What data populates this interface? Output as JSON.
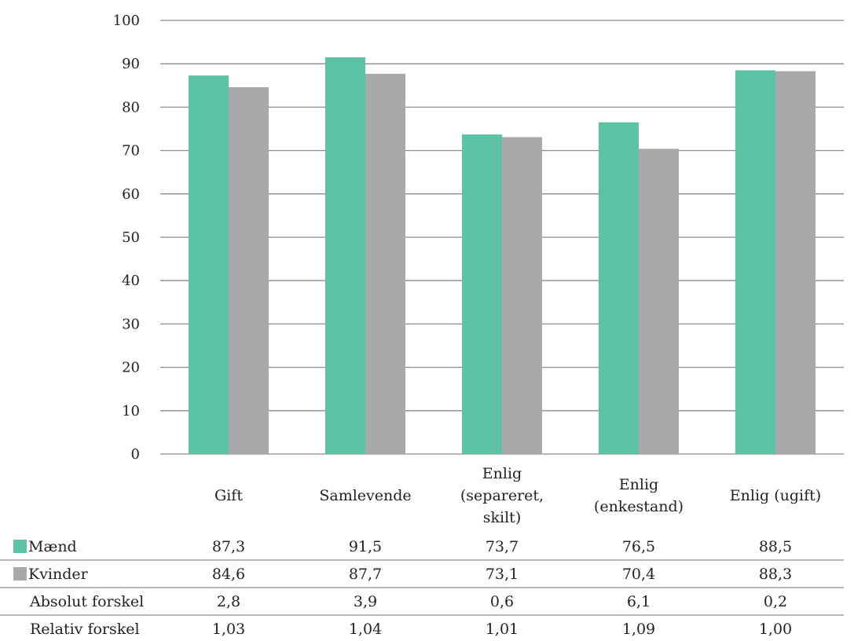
{
  "chart_data": {
    "type": "bar",
    "title": "",
    "xlabel": "",
    "ylabel": "",
    "ylim": [
      0,
      100
    ],
    "yticks": [
      0,
      10,
      20,
      30,
      40,
      50,
      60,
      70,
      80,
      90,
      100
    ],
    "grid": true,
    "categories": [
      [
        "Gift"
      ],
      [
        "Samlevende"
      ],
      [
        "Enlig",
        "(separeret,",
        "skilt)"
      ],
      [
        "Enlig",
        "(enkestand)"
      ],
      [
        "Enlig (ugift)"
      ]
    ],
    "series": [
      {
        "name": "Mænd",
        "color": "#5bc2a3",
        "values": [
          87.3,
          91.5,
          73.7,
          76.5,
          88.5
        ]
      },
      {
        "name": "Kvinder",
        "color": "#a7a9ab",
        "values": [
          84.6,
          87.7,
          73.1,
          70.4,
          88.3
        ]
      }
    ],
    "table_rows": [
      {
        "label": "Mænd",
        "swatch": "#5bc2a3",
        "cells": [
          "87,3",
          "91,5",
          "73,7",
          "76,5",
          "88,5"
        ]
      },
      {
        "label": "Kvinder",
        "swatch": "#a7a9ab",
        "cells": [
          "84,6",
          "87,7",
          "73,1",
          "70,4",
          "88,3"
        ]
      },
      {
        "label": "Absolut forskel",
        "swatch": "",
        "cells": [
          "2,8",
          "3,9",
          "0,6",
          "6,1",
          "0,2"
        ]
      },
      {
        "label": "Relativ forskel",
        "swatch": "",
        "cells": [
          "1,03",
          "1,04",
          "1,01",
          "1,09",
          "1,00"
        ]
      }
    ]
  }
}
